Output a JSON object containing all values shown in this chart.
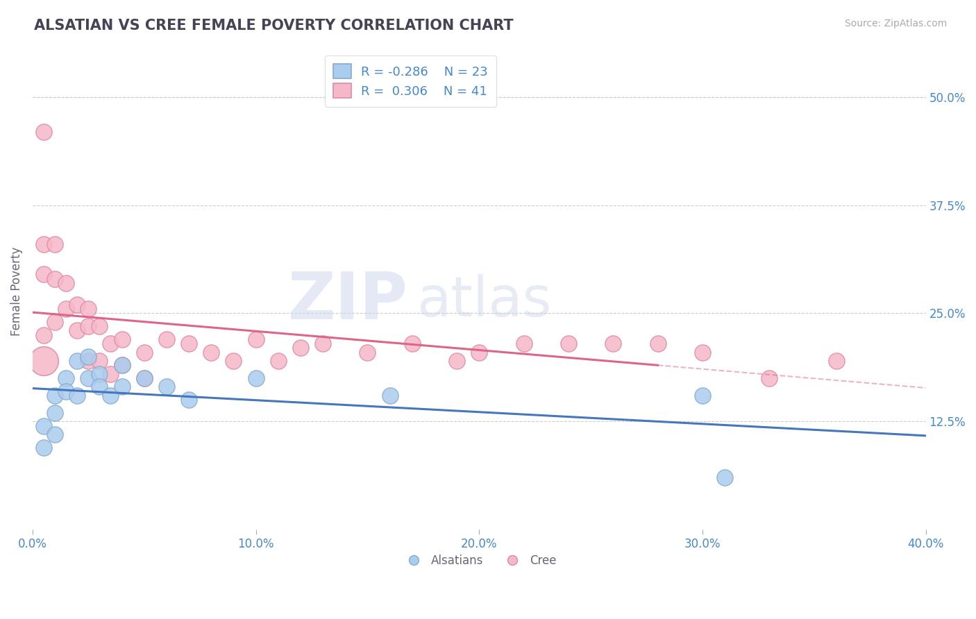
{
  "title": "ALSATIAN VS CREE FEMALE POVERTY CORRELATION CHART",
  "source": "Source: ZipAtlas.com",
  "ylabel": "Female Poverty",
  "xlim": [
    0.0,
    0.4
  ],
  "ylim": [
    0.0,
    0.55
  ],
  "xticks": [
    0.0,
    0.1,
    0.2,
    0.3,
    0.4
  ],
  "xtick_labels": [
    "0.0%",
    "10.0%",
    "20.0%",
    "30.0%",
    "40.0%"
  ],
  "yticks": [
    0.125,
    0.25,
    0.375,
    0.5
  ],
  "ytick_labels": [
    "12.5%",
    "25.0%",
    "37.5%",
    "50.0%"
  ],
  "grid_color": "#cccccc",
  "background_color": "#ffffff",
  "alsatian_color": "#aaccee",
  "alsatian_edge": "#88aacc",
  "cree_color": "#f5b8c8",
  "cree_edge": "#dd88aa",
  "alsatian_R": -0.286,
  "alsatian_N": 23,
  "cree_R": 0.306,
  "cree_N": 41,
  "alsatian_line_color": "#4477bb",
  "cree_line_color": "#dd6688",
  "dashed_line_color": "#cccccc",
  "title_color": "#444455",
  "axis_label_color": "#666677",
  "tick_color": "#4488cc",
  "legend_text_color": "#4488cc",
  "alsatian_x": [
    0.005,
    0.005,
    0.01,
    0.01,
    0.01,
    0.015,
    0.015,
    0.02,
    0.02,
    0.025,
    0.025,
    0.03,
    0.03,
    0.035,
    0.04,
    0.04,
    0.05,
    0.06,
    0.07,
    0.1,
    0.16,
    0.3,
    0.31
  ],
  "alsatian_y": [
    0.095,
    0.12,
    0.155,
    0.135,
    0.11,
    0.175,
    0.16,
    0.195,
    0.155,
    0.2,
    0.175,
    0.18,
    0.165,
    0.155,
    0.19,
    0.165,
    0.175,
    0.165,
    0.15,
    0.175,
    0.155,
    0.155,
    0.06
  ],
  "cree_x": [
    0.005,
    0.005,
    0.005,
    0.005,
    0.01,
    0.01,
    0.01,
    0.015,
    0.015,
    0.02,
    0.02,
    0.025,
    0.025,
    0.025,
    0.03,
    0.03,
    0.035,
    0.035,
    0.04,
    0.04,
    0.05,
    0.05,
    0.06,
    0.07,
    0.08,
    0.09,
    0.1,
    0.11,
    0.12,
    0.13,
    0.15,
    0.17,
    0.19,
    0.2,
    0.22,
    0.24,
    0.26,
    0.28,
    0.3,
    0.33,
    0.36
  ],
  "cree_y": [
    0.46,
    0.33,
    0.295,
    0.225,
    0.33,
    0.29,
    0.24,
    0.285,
    0.255,
    0.26,
    0.23,
    0.255,
    0.235,
    0.195,
    0.235,
    0.195,
    0.215,
    0.18,
    0.22,
    0.19,
    0.205,
    0.175,
    0.22,
    0.215,
    0.205,
    0.195,
    0.22,
    0.195,
    0.21,
    0.215,
    0.205,
    0.215,
    0.195,
    0.205,
    0.215,
    0.215,
    0.215,
    0.215,
    0.205,
    0.175,
    0.195
  ],
  "cree_big_x": [
    0.005
  ],
  "cree_big_y": [
    0.195
  ],
  "watermark_zip": "ZIP",
  "watermark_atlas": "atlas"
}
